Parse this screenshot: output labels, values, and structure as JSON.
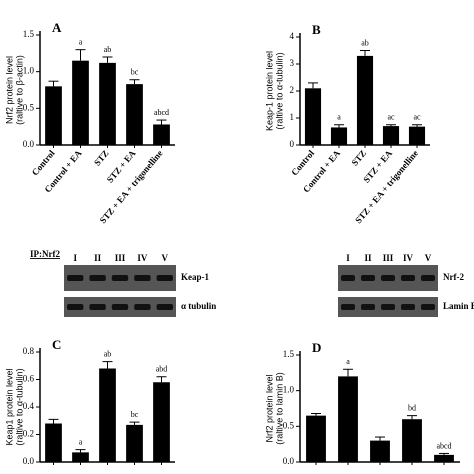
{
  "chart_data": [
    {
      "type": "bar",
      "title": "A",
      "ylabel": [
        "Nrf2 protein level",
        "(raltive to β-actin)"
      ],
      "categories": [
        "Control",
        "Control + EA",
        "STZ",
        "STZ + EA",
        "STZ + EA + trigonelline"
      ],
      "values": [
        0.8,
        1.15,
        1.12,
        0.83,
        0.28
      ],
      "errors": [
        0.07,
        0.15,
        0.08,
        0.06,
        0.06
      ],
      "annotations": [
        null,
        "a",
        "ab",
        "bc",
        "abcd"
      ],
      "color": "#000000",
      "ylim": [
        0,
        1.5
      ],
      "yticks": [
        {
          "value": 0,
          "label": "0.0"
        },
        {
          "value": 0.5,
          "label": "0.5"
        },
        {
          "value": 1,
          "label": "1.0"
        },
        {
          "value": 1.5,
          "label": "1.5"
        }
      ]
    },
    {
      "type": "bar",
      "title": "B",
      "ylabel": [
        "Keap-1 protein level",
        "(raltive to α-tubulin)"
      ],
      "categories": [
        "Control",
        "Control + EA",
        "STZ",
        "STZ + EA",
        "STZ + EA + trigonelline"
      ],
      "values": [
        2.1,
        0.65,
        3.3,
        0.7,
        0.68
      ],
      "errors": [
        0.2,
        0.1,
        0.2,
        0.05,
        0.07
      ],
      "annotations": [
        null,
        "a",
        "ab",
        "ac",
        "ac"
      ],
      "color": "#000000",
      "ylim": [
        0,
        4
      ],
      "yticks": [
        0,
        1,
        2,
        3,
        4
      ]
    },
    {
      "type": "bar",
      "title": "C",
      "ylabel": [
        "Keap1 protein level",
        "(raltive to α-tubulin)"
      ],
      "categories": [
        null,
        null,
        null,
        null,
        null
      ],
      "values": [
        0.28,
        0.07,
        0.68,
        0.27,
        0.58
      ],
      "errors": [
        0.03,
        0.02,
        0.05,
        0.02,
        0.04
      ],
      "annotations": [
        null,
        "a",
        "ab",
        "bc",
        "abd"
      ],
      "color": "#000000",
      "ylim": [
        0,
        0.8
      ],
      "yticks": [
        {
          "value": 0,
          "label": "0.0"
        },
        0.2,
        0.4,
        0.6,
        0.8
      ]
    },
    {
      "type": "bar",
      "title": "D",
      "ylabel": [
        "Nrf2 protein level",
        "(raltive to lamin B)"
      ],
      "categories": [
        null,
        null,
        null,
        null,
        null
      ],
      "values": [
        0.65,
        1.2,
        0.3,
        0.6,
        0.1
      ],
      "errors": [
        0.03,
        0.1,
        0.05,
        0.05,
        0.02
      ],
      "annotations": [
        null,
        "a",
        null,
        "bd",
        "abcd"
      ],
      "color": "#000000",
      "ylim": [
        0,
        1.5
      ],
      "yticks": [
        {
          "value": 0,
          "label": "0.0"
        },
        {
          "value": 0.5,
          "label": "0.5"
        },
        {
          "value": 1,
          "label": "1.0"
        },
        {
          "value": 1.5,
          "label": "1.5"
        }
      ]
    }
  ],
  "blots": [
    {
      "title": "IP:Nrf2",
      "lanes": [
        "I",
        "II",
        "III",
        "IV",
        "V"
      ],
      "bands": [
        "Keap-1",
        "α tubulin"
      ]
    },
    {
      "lanes": [
        "I",
        "II",
        "III",
        "IV",
        "V"
      ],
      "bands": [
        "Nrf-2",
        "Lamin B"
      ]
    }
  ]
}
